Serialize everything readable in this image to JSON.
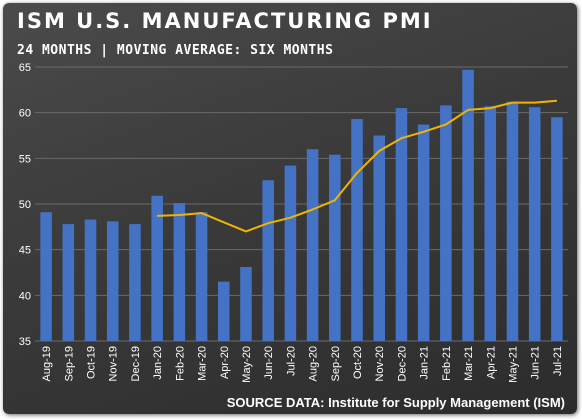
{
  "header": {
    "title": "ISM U.S. MANUFACTURING PMI",
    "subtitle": "24 MONTHS | MOVING AVERAGE: SIX MONTHS"
  },
  "footer": {
    "source": "SOURCE DATA: Institute for Supply Management (ISM)"
  },
  "colors": {
    "bar": "#4472c4",
    "line": "#f0b400",
    "grid": "#6a6a6a"
  },
  "chart_data": {
    "type": "bar",
    "title": "ISM U.S. MANUFACTURING PMI",
    "subtitle": "24 MONTHS | MOVING AVERAGE: SIX MONTHS",
    "categories": [
      "Aug-19",
      "Sep-19",
      "Oct-19",
      "Nov-19",
      "Dec-19",
      "Jan-20",
      "Feb-20",
      "Mar-20",
      "Apr-20",
      "May-20",
      "Jun-20",
      "Jul-20",
      "Aug-20",
      "Sep-20",
      "Oct-20",
      "Nov-20",
      "Dec-20",
      "Jan-21",
      "Feb-21",
      "Mar-21",
      "Apr-21",
      "May-21",
      "Jun-21",
      "Jul-21"
    ],
    "series": [
      {
        "type": "bar",
        "values": [
          49.1,
          47.8,
          48.3,
          48.1,
          47.8,
          50.9,
          50.1,
          49.1,
          41.5,
          43.1,
          52.6,
          54.2,
          56.0,
          55.4,
          59.3,
          57.5,
          60.5,
          58.7,
          60.8,
          64.7,
          60.7,
          61.2,
          60.6,
          59.5
        ]
      },
      {
        "type": "line",
        "values": [
          null,
          null,
          null,
          null,
          null,
          48.7,
          48.8,
          49.0,
          48.0,
          47.0,
          47.9,
          48.5,
          49.4,
          50.4,
          53.4,
          55.8,
          57.2,
          57.9,
          58.7,
          60.3,
          60.5,
          61.1,
          61.1,
          61.3
        ]
      }
    ],
    "ylim": [
      35,
      65
    ],
    "yticks": [
      "35",
      "40",
      "45",
      "50",
      "55",
      "60",
      "65"
    ],
    "grid": true
  }
}
